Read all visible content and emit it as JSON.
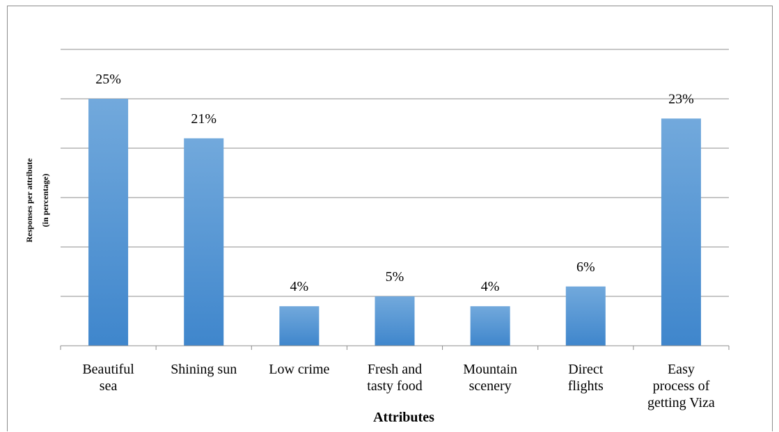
{
  "chart_data": {
    "type": "bar",
    "categories": [
      [
        "Beautiful",
        "sea"
      ],
      [
        "Shining sun"
      ],
      [
        "Low crime"
      ],
      [
        "Fresh and",
        "tasty food"
      ],
      [
        "Mountain",
        "scenery"
      ],
      [
        "Direct",
        "flights"
      ],
      [
        "Easy",
        "process of",
        "getting Viza"
      ]
    ],
    "values": [
      25,
      21,
      4,
      5,
      4,
      6,
      23
    ],
    "data_labels": [
      "25%",
      "21%",
      "4%",
      "5%",
      "4%",
      "6%",
      "23%"
    ],
    "xlabel": "Attributes",
    "ylabel": [
      "Responses per attribute",
      "(in percentage)"
    ],
    "ylim": [
      0,
      30
    ],
    "y_gridlines": [
      5,
      10,
      15,
      20,
      25,
      30
    ],
    "grid": true,
    "bar_color_top": "#72a9dc",
    "bar_color_bottom": "#3f86cc"
  }
}
